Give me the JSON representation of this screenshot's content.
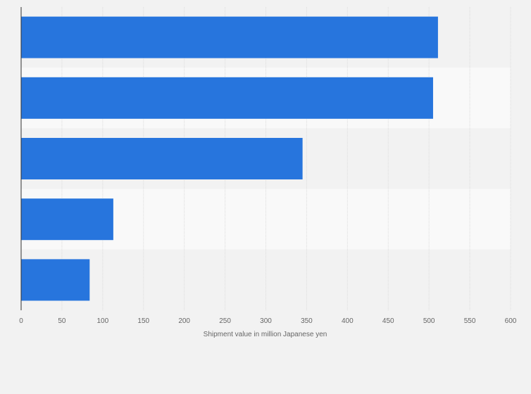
{
  "chart_data": {
    "type": "bar",
    "orientation": "horizontal",
    "categories": [
      "",
      "",
      "",
      "",
      ""
    ],
    "values": [
      511,
      505,
      345,
      113,
      84
    ],
    "xlabel": "Shipment value in million Japanese yen",
    "ylabel": "",
    "xlim": [
      0,
      600
    ],
    "xticks": [
      "0",
      "50",
      "100",
      "150",
      "200",
      "250",
      "300",
      "350",
      "400",
      "450",
      "500",
      "550",
      "600"
    ],
    "grid": true,
    "legend": "none",
    "colors": {
      "bar": "#2775dd",
      "band_light": "#f9f9f9",
      "band_dark": "#f2f2f2",
      "grid": "#dcdcdc",
      "axis": "#333333"
    }
  }
}
